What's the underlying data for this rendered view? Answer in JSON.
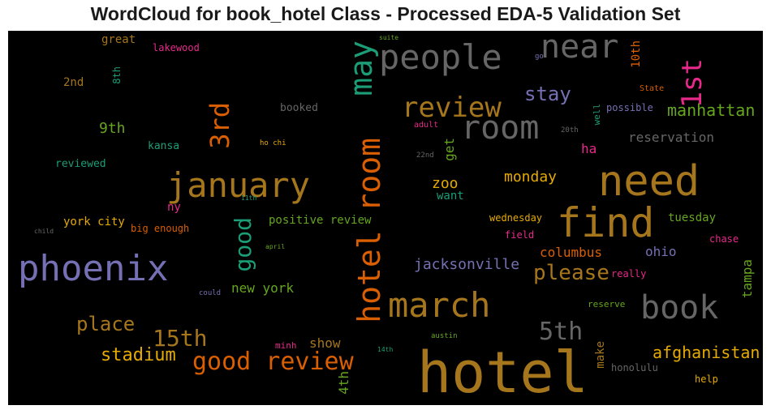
{
  "chart_data": {
    "type": "wordcloud",
    "title": "WordCloud for book_hotel Class - Processed EDA-5 Validation Set",
    "words": [
      {
        "text": "hotel",
        "color": "#a6761d"
      },
      {
        "text": "find",
        "color": "#a6761d"
      },
      {
        "text": "need",
        "color": "#a6761d"
      },
      {
        "text": "phoenix",
        "color": "#7570b3"
      },
      {
        "text": "january",
        "color": "#a6761d"
      },
      {
        "text": "people",
        "color": "#666666"
      },
      {
        "text": "room",
        "color": "#666666"
      },
      {
        "text": "hotel room",
        "color": "#d95f02"
      },
      {
        "text": "march",
        "color": "#a6761d"
      },
      {
        "text": "book",
        "color": "#666666"
      },
      {
        "text": "near",
        "color": "#666666"
      },
      {
        "text": "review",
        "color": "#a6761d"
      },
      {
        "text": "may",
        "color": "#1b9e77"
      },
      {
        "text": "1st",
        "color": "#e7298a"
      },
      {
        "text": "3rd",
        "color": "#d95f02"
      },
      {
        "text": "good review",
        "color": "#d95f02"
      },
      {
        "text": "good",
        "color": "#1b9e77"
      },
      {
        "text": "5th",
        "color": "#666666"
      },
      {
        "text": "15th",
        "color": "#a6761d"
      },
      {
        "text": "please",
        "color": "#a6761d"
      },
      {
        "text": "place",
        "color": "#a6761d"
      },
      {
        "text": "stadium",
        "color": "#e6ab02"
      },
      {
        "text": "stay",
        "color": "#7570b3"
      },
      {
        "text": "afghanistan",
        "color": "#e6ab02"
      },
      {
        "text": "manhattan",
        "color": "#66a61e"
      },
      {
        "text": "jacksonville",
        "color": "#7570b3"
      },
      {
        "text": "monday",
        "color": "#e6ab02"
      },
      {
        "text": "reservation",
        "color": "#666666"
      },
      {
        "text": "zoo",
        "color": "#e6ab02"
      },
      {
        "text": "9th",
        "color": "#66a61e"
      },
      {
        "text": "get",
        "color": "#66a61e"
      },
      {
        "text": "columbus",
        "color": "#d95f02"
      },
      {
        "text": "ohio",
        "color": "#7570b3"
      },
      {
        "text": "new york",
        "color": "#66a61e"
      },
      {
        "text": "tampa",
        "color": "#66a61e"
      },
      {
        "text": "4th",
        "color": "#66a61e"
      },
      {
        "text": "ha",
        "color": "#e7298a"
      },
      {
        "text": "positive review",
        "color": "#66a61e"
      },
      {
        "text": "york city",
        "color": "#e6ab02"
      },
      {
        "text": "show",
        "color": "#a6761d"
      },
      {
        "text": "tuesday",
        "color": "#66a61e"
      },
      {
        "text": "10th",
        "color": "#d95f02"
      },
      {
        "text": "kansa",
        "color": "#1b9e77"
      },
      {
        "text": "reviewed",
        "color": "#1b9e77"
      },
      {
        "text": "ny",
        "color": "#e7298a"
      },
      {
        "text": "make",
        "color": "#a6761d"
      },
      {
        "text": "want",
        "color": "#1b9e77"
      },
      {
        "text": "great",
        "color": "#a6761d"
      },
      {
        "text": "2nd",
        "color": "#a6761d"
      },
      {
        "text": "8th",
        "color": "#1b9e77"
      },
      {
        "text": "booked",
        "color": "#666666"
      },
      {
        "text": "lakewood",
        "color": "#e7298a"
      },
      {
        "text": "possible",
        "color": "#7570b3"
      },
      {
        "text": "well",
        "color": "#1b9e77"
      },
      {
        "text": "big enough",
        "color": "#d95f02"
      },
      {
        "text": "wednesday",
        "color": "#e6ab02"
      },
      {
        "text": "field",
        "color": "#e7298a"
      },
      {
        "text": "really",
        "color": "#e7298a"
      },
      {
        "text": "chase",
        "color": "#e7298a"
      },
      {
        "text": "honolulu",
        "color": "#666666"
      },
      {
        "text": "help",
        "color": "#e6ab02"
      },
      {
        "text": "reserve",
        "color": "#66a61e"
      },
      {
        "text": "minh",
        "color": "#e7298a"
      },
      {
        "text": "State",
        "color": "#d95f02"
      },
      {
        "text": "adult",
        "color": "#e7298a"
      },
      {
        "text": "20th",
        "color": "#666666"
      },
      {
        "text": "22nd",
        "color": "#666666"
      },
      {
        "text": "ho chi",
        "color": "#e6ab02"
      },
      {
        "text": "suite",
        "color": "#66a61e"
      },
      {
        "text": "go",
        "color": "#7570b3"
      },
      {
        "text": "11th",
        "color": "#1b9e77"
      },
      {
        "text": "child",
        "color": "#666666"
      },
      {
        "text": "april",
        "color": "#66a61e"
      },
      {
        "text": "could",
        "color": "#7570b3"
      },
      {
        "text": "austin",
        "color": "#66a61e"
      },
      {
        "text": "14th",
        "color": "#1b9e77"
      }
    ]
  }
}
